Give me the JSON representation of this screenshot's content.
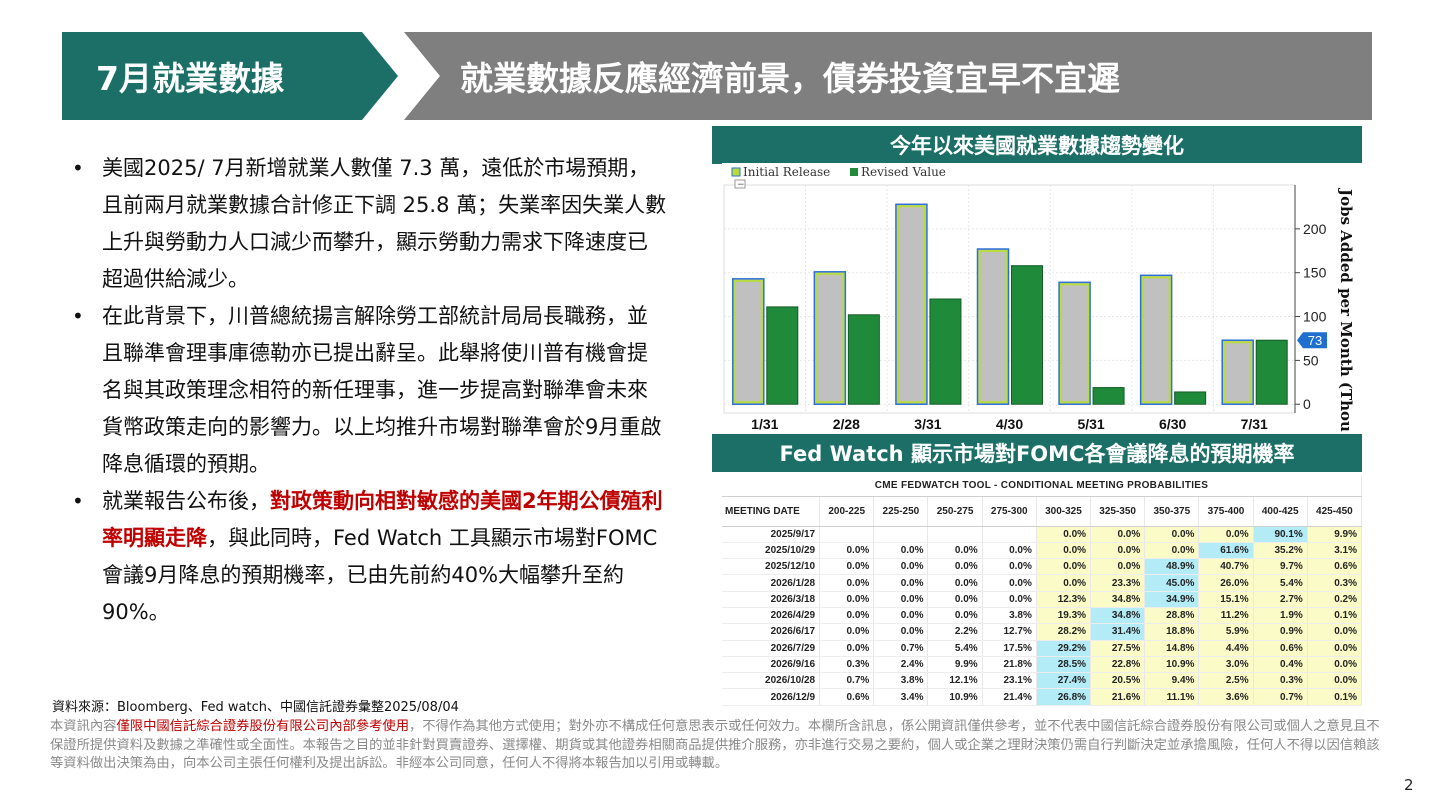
{
  "header": {
    "section_title": "7月就業數據",
    "main_title": "就業數據反應經濟前景，債券投資宜早不宜遲"
  },
  "bullets": [
    {
      "marker": "•",
      "text": "美國2025/ 7月新增就業人數僅 7.3 萬，遠低於市場預期，且前兩月就業數據合計修正下調 25.8 萬；失業率因失業人數上升與勞動力人口減少而攀升，顯示勞動力需求下降速度已超過供給減少。"
    },
    {
      "marker": "•",
      "text": "在此背景下，川普總統揚言解除勞工部統計局局長職務，並且聯準會理事庫德勒亦已提出辭呈。此舉將使川普有機會提名與其政策理念相符的新任理事，進一步提高對聯準會未來貨幣政策走向的影響力。以上均推升市場對聯準會於9月重啟降息循環的預期。"
    },
    {
      "marker": "•",
      "text_before": "就業報告公布後，",
      "text_red": "對政策動向相對敏感的美國2年期公債殖利率明顯走降",
      "text_after": "，與此同時，Fed Watch 工具顯示市場對FOMC會議9月降息的預期機率，已由先前約40%大幅攀升至約90%。"
    }
  ],
  "chart_panel": {
    "title": "今年以來美國就業數據趨勢變化",
    "legend_toggle": "−",
    "accent_color": "#1b6f66"
  },
  "chart_data": {
    "type": "bar",
    "categories": [
      "1/31",
      "2/28",
      "3/31",
      "4/30",
      "5/31",
      "6/30",
      "7/31"
    ],
    "series": [
      {
        "name": "Initial Release",
        "values": [
          143,
          151,
          228,
          177,
          139,
          147,
          73
        ],
        "color": "#c0c0c0",
        "edge": "#2d6fd6",
        "inner": "#b7dc3c"
      },
      {
        "name": "Revised Value",
        "values": [
          111,
          102,
          120,
          158,
          19,
          14,
          73
        ],
        "color": "#1e8a3a"
      }
    ],
    "ylabel": "Jobs Added per Month (Thou.)",
    "yticks": [
      0,
      50,
      100,
      150,
      200
    ],
    "ylim": [
      -10,
      250
    ],
    "last_value_label": "73"
  },
  "table_panel": {
    "title": "Fed Watch 顯示市場對FOMC各會議降息的預期機率",
    "caption": "CME FEDWATCH TOOL - CONDITIONAL MEETING PROBABILITIES",
    "headers": [
      "MEETING DATE",
      "200-225",
      "225-250",
      "250-275",
      "275-300",
      "300-325",
      "325-350",
      "350-375",
      "375-400",
      "400-425",
      "425-450"
    ],
    "rows": [
      [
        "2025/9/17",
        "",
        "",
        "",
        "",
        "0.0%",
        "0.0%",
        "0.0%",
        "0.0%",
        "90.1%",
        "9.9%"
      ],
      [
        "2025/10/29",
        "0.0%",
        "0.0%",
        "0.0%",
        "0.0%",
        "0.0%",
        "0.0%",
        "0.0%",
        "61.6%",
        "35.2%",
        "3.1%"
      ],
      [
        "2025/12/10",
        "0.0%",
        "0.0%",
        "0.0%",
        "0.0%",
        "0.0%",
        "0.0%",
        "48.9%",
        "40.7%",
        "9.7%",
        "0.6%"
      ],
      [
        "2026/1/28",
        "0.0%",
        "0.0%",
        "0.0%",
        "0.0%",
        "0.0%",
        "23.3%",
        "45.0%",
        "26.0%",
        "5.4%",
        "0.3%"
      ],
      [
        "2026/3/18",
        "0.0%",
        "0.0%",
        "0.0%",
        "0.0%",
        "12.3%",
        "34.8%",
        "34.9%",
        "15.1%",
        "2.7%",
        "0.2%"
      ],
      [
        "2026/4/29",
        "0.0%",
        "0.0%",
        "0.0%",
        "3.8%",
        "19.3%",
        "34.8%",
        "28.8%",
        "11.2%",
        "1.9%",
        "0.1%"
      ],
      [
        "2026/6/17",
        "0.0%",
        "0.0%",
        "2.2%",
        "12.7%",
        "28.2%",
        "31.4%",
        "18.8%",
        "5.9%",
        "0.9%",
        "0.0%"
      ],
      [
        "2026/7/29",
        "0.0%",
        "0.7%",
        "5.4%",
        "17.5%",
        "29.2%",
        "27.5%",
        "14.8%",
        "4.4%",
        "0.6%",
        "0.0%"
      ],
      [
        "2026/9/16",
        "0.3%",
        "2.4%",
        "9.9%",
        "21.8%",
        "28.5%",
        "22.8%",
        "10.9%",
        "3.0%",
        "0.4%",
        "0.0%"
      ],
      [
        "2026/10/28",
        "0.7%",
        "3.8%",
        "12.1%",
        "23.1%",
        "27.4%",
        "20.5%",
        "9.4%",
        "2.5%",
        "0.3%",
        "0.0%"
      ],
      [
        "2026/12/9",
        "0.6%",
        "3.4%",
        "10.9%",
        "21.4%",
        "26.8%",
        "21.6%",
        "11.1%",
        "3.6%",
        "0.7%",
        "0.1%"
      ]
    ],
    "highlight_blue": [
      [
        0,
        9
      ],
      [
        1,
        8
      ],
      [
        2,
        7
      ],
      [
        3,
        7
      ],
      [
        4,
        7
      ],
      [
        5,
        6
      ],
      [
        6,
        6
      ],
      [
        7,
        5
      ],
      [
        8,
        5
      ],
      [
        9,
        5
      ],
      [
        10,
        5
      ]
    ]
  },
  "footer": {
    "source": "資料來源：Bloomberg、Fed watch、中國信託證券彙整2025/08/04",
    "disclaimer_pre": "本資訊內容",
    "disclaimer_red": "僅限中國信託綜合證券股份有限公司內部參考使用",
    "disclaimer_post": "，不得作為其他方式使用；對外亦不構成任何意思表示或任何效力。本欄所含訊息，係公開資訊僅供參考，並不代表中國信託綜合證券股份有限公司或個人之意見且不保證所提供資料及數據之準確性或全面性。本報告之目的並非針對買賣證券、選擇權、期貨或其他證券相關商品提供推介服務，亦非進行交易之要約，個人或企業之理財決策仍需自行判斷決定並承擔風險，任何人不得以因信賴該等資料做出決策為由，向本公司主張任何權利及提出訴訟。非經本公司同意，任何人不得將本報告加以引用或轉載。",
    "page_number": "2"
  }
}
